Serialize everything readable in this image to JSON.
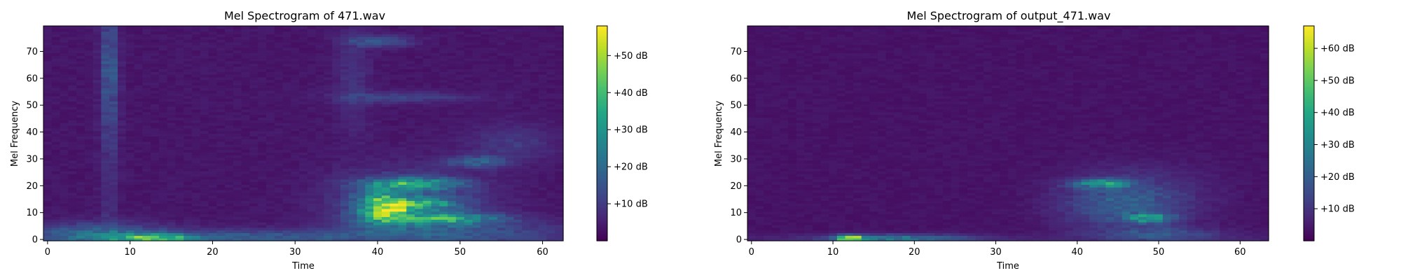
{
  "chart_data": [
    {
      "type": "heatmap",
      "title": "Mel Spectrogram of 471.wav",
      "xlabel": "Time",
      "ylabel": "Mel Frequency",
      "x_ticks": [
        0,
        10,
        20,
        30,
        40,
        50,
        60
      ],
      "y_ticks": [
        0,
        10,
        20,
        30,
        40,
        50,
        60,
        70
      ],
      "xlim": [
        -0.5,
        62.5
      ],
      "ylim": [
        -0.5,
        79.5
      ],
      "n_frames": 63,
      "n_mels": 80,
      "colormap": "viridis",
      "colorbar": {
        "range_db": [
          0,
          58
        ],
        "ticks": [
          10,
          20,
          30,
          40,
          50
        ],
        "tick_labels": [
          "+10 dB",
          "+20 dB",
          "+30 dB",
          "+40 dB",
          "+50 dB"
        ]
      },
      "features": [
        {
          "t": 7.5,
          "f": 64,
          "st": 0.7,
          "sf": 14,
          "db": 10
        },
        {
          "t": 7.5,
          "f": 40,
          "st": 0.8,
          "sf": 40,
          "db": 5
        },
        {
          "t": 6,
          "f": 2,
          "st": 6,
          "sf": 3,
          "db": 16
        },
        {
          "t": 13,
          "f": 0.5,
          "st": 3,
          "sf": 1,
          "db": 30
        },
        {
          "t": 24,
          "f": 1,
          "st": 10,
          "sf": 2,
          "db": 12
        },
        {
          "t": 37,
          "f": 60,
          "st": 1.5,
          "sf": 15,
          "db": 5
        },
        {
          "t": 40.5,
          "f": 74,
          "st": 2.5,
          "sf": 1.5,
          "db": 13
        },
        {
          "t": 43,
          "f": 53,
          "st": 6,
          "sf": 1.5,
          "db": 8
        },
        {
          "t": 40.5,
          "f": 12,
          "st": 2,
          "sf": 4,
          "db": 34
        },
        {
          "t": 42.5,
          "f": 11,
          "st": 1,
          "sf": 1,
          "db": 20
        },
        {
          "t": 44,
          "f": 21,
          "st": 4,
          "sf": 1.5,
          "db": 24
        },
        {
          "t": 45.5,
          "f": 13.5,
          "st": 3,
          "sf": 1.5,
          "db": 20
        },
        {
          "t": 48,
          "f": 8,
          "st": 5,
          "sf": 1.5,
          "db": 24
        },
        {
          "t": 44,
          "f": 14,
          "st": 6,
          "sf": 8,
          "db": 14
        },
        {
          "t": 52,
          "f": 29,
          "st": 2.5,
          "sf": 1.5,
          "db": 14
        },
        {
          "t": 56,
          "f": 36,
          "st": 4,
          "sf": 5,
          "db": 6
        },
        {
          "t": 50,
          "f": 3,
          "st": 10,
          "sf": 3,
          "db": 10
        }
      ]
    },
    {
      "type": "heatmap",
      "title": "Mel Spectrogram of output_471.wav",
      "xlabel": "Time",
      "ylabel": "Mel Frequency",
      "x_ticks": [
        0,
        10,
        20,
        30,
        40,
        50,
        60
      ],
      "y_ticks": [
        0,
        10,
        20,
        30,
        40,
        50,
        60,
        70
      ],
      "xlim": [
        -0.5,
        63.5
      ],
      "ylim": [
        -0.5,
        79.5
      ],
      "n_frames": 64,
      "n_mels": 80,
      "colormap": "viridis",
      "colorbar": {
        "range_db": [
          0,
          67
        ],
        "ticks": [
          10,
          20,
          30,
          40,
          50,
          60
        ],
        "tick_labels": [
          "+10 dB",
          "+20 dB",
          "+30 dB",
          "+40 dB",
          "+50 dB",
          "+60 dB"
        ]
      },
      "features": [
        {
          "t": 12,
          "f": 0.5,
          "st": 1.2,
          "sf": 0.8,
          "db": 50
        },
        {
          "t": 18,
          "f": 0.5,
          "st": 6,
          "sf": 1,
          "db": 22
        },
        {
          "t": 43,
          "f": 21,
          "st": 2.5,
          "sf": 1.2,
          "db": 28
        },
        {
          "t": 49,
          "f": 8,
          "st": 2,
          "sf": 1.2,
          "db": 28
        },
        {
          "t": 45,
          "f": 13,
          "st": 5,
          "sf": 6,
          "db": 12
        },
        {
          "t": 50,
          "f": 2,
          "st": 5,
          "sf": 2,
          "db": 12
        },
        {
          "t": 48,
          "f": 17,
          "st": 6,
          "sf": 8,
          "db": 6
        }
      ]
    }
  ]
}
